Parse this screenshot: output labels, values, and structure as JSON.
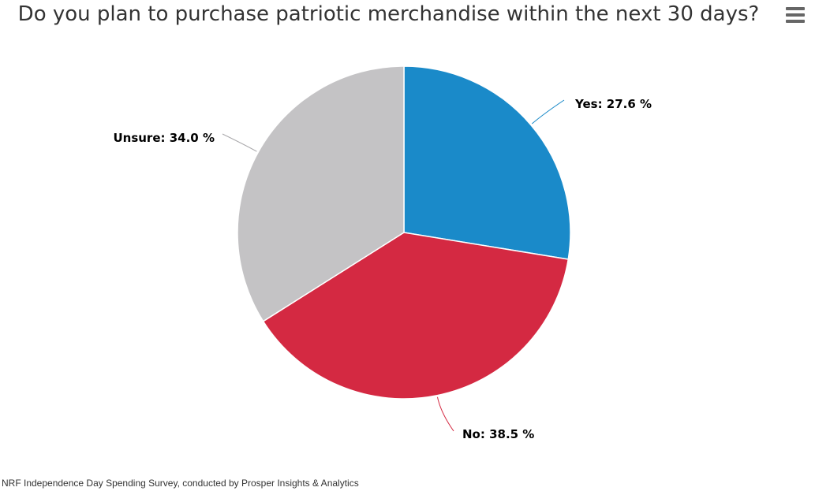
{
  "title": "Do you plan to purchase patriotic merchandise within the next 30 days?",
  "menu_icon": "hamburger-menu-icon",
  "caption": "NRF Independence Day Spending Survey, conducted by Prosper Insights & Analytics",
  "chart_data": {
    "type": "pie",
    "title": "Do you plan to purchase patriotic merchandise within the next 30 days?",
    "slices": [
      {
        "name": "Yes",
        "value": 27.6,
        "color": "#1a8ac9",
        "label": "Yes: 27.6 %"
      },
      {
        "name": "No",
        "value": 38.5,
        "color": "#d42942",
        "label": "No: 38.5 %"
      },
      {
        "name": "Unsure",
        "value": 34.0,
        "color": "#c4c3c5",
        "label": "Unsure: 34.0 %"
      }
    ],
    "unit": "%",
    "legend": "none",
    "data_labels": "outside with connectors"
  }
}
